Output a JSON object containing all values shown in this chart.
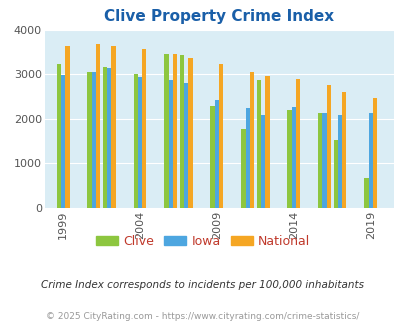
{
  "title": "Clive Property Crime Index",
  "plot_years": [
    1999,
    2001,
    2002,
    2004,
    2006,
    2007,
    2009,
    2011,
    2012,
    2014,
    2016,
    2017,
    2019
  ],
  "clive_vals": [
    3220,
    3050,
    3170,
    3000,
    3450,
    3430,
    2290,
    1780,
    2880,
    2200,
    2120,
    1530,
    680
  ],
  "iowa_vals": [
    2980,
    3040,
    3150,
    2940,
    2870,
    2800,
    2430,
    2240,
    2090,
    2270,
    2120,
    2080,
    2120
  ],
  "national_vals": [
    3640,
    3680,
    3640,
    3560,
    3450,
    3370,
    3230,
    3060,
    2960,
    2890,
    2750,
    2610,
    2470
  ],
  "clive_color": "#8dc63f",
  "iowa_color": "#4da6e0",
  "national_color": "#f5a623",
  "bg_color": "#daedf5",
  "ylim": [
    0,
    4000
  ],
  "yticks": [
    0,
    1000,
    2000,
    3000,
    4000
  ],
  "xticks": [
    1999,
    2004,
    2009,
    2014,
    2019
  ],
  "subtitle": "Crime Index corresponds to incidents per 100,000 inhabitants",
  "footer": "© 2025 CityRating.com - https://www.cityrating.com/crime-statistics/",
  "bar_width": 0.28,
  "xlim_left": 1997.8,
  "xlim_right": 2020.5,
  "title_color": "#1a5fa8",
  "label_color": "#c0392b",
  "subtitle_color": "#333333",
  "footer_color": "#999999"
}
